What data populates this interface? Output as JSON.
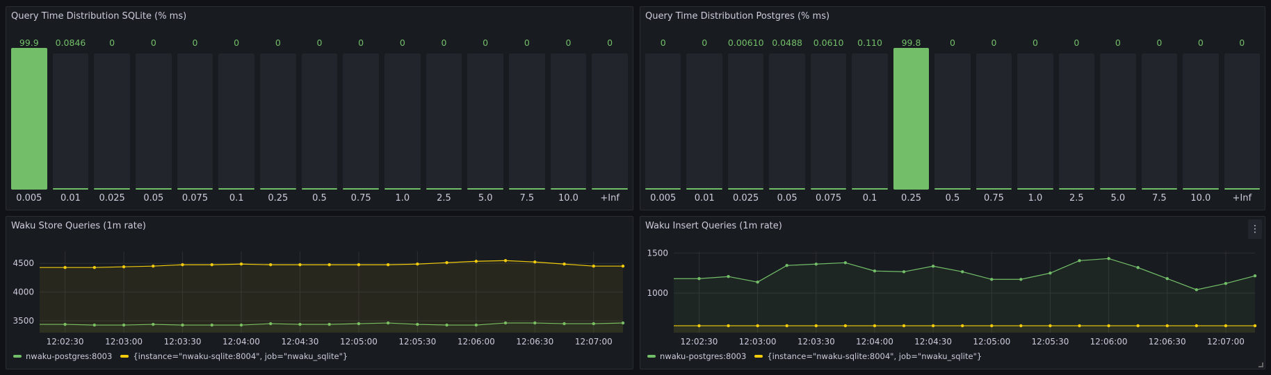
{
  "colors": {
    "green": "#73bf69",
    "yellow": "#f2cc0c",
    "bar_bg": "#22252b",
    "panel_bg": "#181b1f",
    "grid": "#2c2f35"
  },
  "bar_panels": [
    {
      "title": "Query Time Distribution SQLite (% ms)",
      "chart_data": {
        "type": "bar",
        "categories": [
          "0.005",
          "0.01",
          "0.025",
          "0.05",
          "0.075",
          "0.1",
          "0.25",
          "0.5",
          "0.75",
          "1.0",
          "2.5",
          "5.0",
          "7.5",
          "10.0",
          "+Inf"
        ],
        "values": [
          99.9,
          0.0846,
          0,
          0,
          0,
          0,
          0,
          0,
          0,
          0,
          0,
          0,
          0,
          0,
          0
        ],
        "labels": [
          "99.9",
          "0.0846",
          "0",
          "0",
          "0",
          "0",
          "0",
          "0",
          "0",
          "0",
          "0",
          "0",
          "0",
          "0",
          "0"
        ],
        "ylim": [
          0,
          100
        ]
      }
    },
    {
      "title": "Query Time Distribution Postgres (% ms)",
      "chart_data": {
        "type": "bar",
        "categories": [
          "0.005",
          "0.01",
          "0.025",
          "0.05",
          "0.075",
          "0.1",
          "0.25",
          "0.5",
          "0.75",
          "1.0",
          "2.5",
          "5.0",
          "7.5",
          "10.0",
          "+Inf"
        ],
        "values": [
          0,
          0,
          0.0061,
          0.0488,
          0.061,
          0.11,
          99.8,
          0,
          0,
          0,
          0,
          0,
          0,
          0,
          0
        ],
        "labels": [
          "0",
          "0",
          "0.00610",
          "0.0488",
          "0.0610",
          "0.110",
          "99.8",
          "0",
          "0",
          "0",
          "0",
          "0",
          "0",
          "0",
          "0"
        ],
        "ylim": [
          0,
          100
        ]
      }
    }
  ],
  "ts_panels": [
    {
      "title": "Waku Store Queries (1m rate)",
      "has_menu": false,
      "chart_data": {
        "type": "line",
        "xlim": [
          "12:02:17",
          "12:07:15"
        ],
        "ylim": [
          3296,
          4708
        ],
        "yticks": [
          3500,
          4000,
          4500
        ],
        "xticks": [
          "12:02:30",
          "12:03:00",
          "12:03:30",
          "12:04:00",
          "12:04:30",
          "12:05:00",
          "12:05:30",
          "12:06:00",
          "12:06:30",
          "12:07:00"
        ],
        "x": [
          "12:02:30",
          "12:02:45",
          "12:03:00",
          "12:03:15",
          "12:03:30",
          "12:03:45",
          "12:04:00",
          "12:04:15",
          "12:04:30",
          "12:04:45",
          "12:05:00",
          "12:05:15",
          "12:05:30",
          "12:05:45",
          "12:06:00",
          "12:06:15",
          "12:06:30",
          "12:06:45",
          "12:07:00",
          "12:07:15"
        ],
        "series": [
          {
            "name": "nwaku-postgres:8003",
            "color": "#73bf69",
            "values": [
              3440,
              3428,
              3428,
              3440,
              3428,
              3428,
              3428,
              3452,
              3440,
              3440,
              3452,
              3464,
              3440,
              3428,
              3428,
              3464,
              3464,
              3452,
              3452,
              3464
            ]
          },
          {
            "name": "{instance=\"nwaku-sqlite:8004\", job=\"nwaku_sqlite\"}",
            "color": "#f2cc0c",
            "values": [
              4428,
              4428,
              4440,
              4452,
              4476,
              4476,
              4488,
              4476,
              4476,
              4476,
              4476,
              4476,
              4488,
              4512,
              4536,
              4548,
              4524,
              4488,
              4452,
              4452
            ]
          }
        ],
        "legend": "bottom-left",
        "grid": true
      }
    },
    {
      "title": "Waku Insert Queries (1m rate)",
      "has_menu": true,
      "menu_icon": "⋮",
      "chart_data": {
        "type": "line",
        "xlim": [
          "12:02:17",
          "12:07:15"
        ],
        "ylim": [
          509,
          1520
        ],
        "yticks": [
          1000,
          1500
        ],
        "xticks": [
          "12:02:30",
          "12:03:00",
          "12:03:30",
          "12:04:00",
          "12:04:30",
          "12:05:00",
          "12:05:30",
          "12:06:00",
          "12:06:30",
          "12:07:00"
        ],
        "x": [
          "12:02:30",
          "12:02:45",
          "12:03:00",
          "12:03:15",
          "12:03:30",
          "12:03:45",
          "12:04:00",
          "12:04:15",
          "12:04:30",
          "12:04:45",
          "12:05:00",
          "12:05:15",
          "12:05:30",
          "12:05:45",
          "12:06:00",
          "12:06:15",
          "12:06:30",
          "12:06:45",
          "12:07:00",
          "12:07:15"
        ],
        "series": [
          {
            "name": "nwaku-postgres:8003",
            "color": "#73bf69",
            "values": [
              1181,
              1207,
              1138,
              1345,
              1362,
              1379,
              1276,
              1267,
              1336,
              1267,
              1172,
              1172,
              1250,
              1405,
              1431,
              1319,
              1181,
              1043,
              1121,
              1216
            ]
          },
          {
            "name": "{instance=\"nwaku-sqlite:8004\", job=\"nwaku_sqlite\"}",
            "color": "#f2cc0c",
            "values": [
              595,
              595,
              595,
              595,
              595,
              595,
              595,
              595,
              595,
              595,
              595,
              595,
              595,
              595,
              595,
              595,
              595,
              595,
              595,
              595
            ]
          }
        ],
        "legend": "bottom-left",
        "grid": true
      }
    }
  ]
}
